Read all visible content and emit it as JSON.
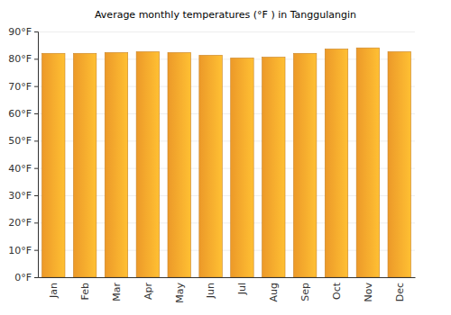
{
  "chart_data": {
    "type": "bar",
    "title": "Average monthly temperatures (°F ) in Tanggulangin",
    "categories": [
      "Jan",
      "Feb",
      "Mar",
      "Apr",
      "May",
      "Jun",
      "Jul",
      "Aug",
      "Sep",
      "Oct",
      "Nov",
      "Dec"
    ],
    "values": [
      82,
      82,
      82.3,
      82.6,
      82.3,
      81.3,
      80.3,
      80.6,
      82,
      83.6,
      84,
      82.6
    ],
    "color": "#f9a12b",
    "ylim": [
      0,
      90
    ],
    "yticks": [
      {
        "value": 0,
        "label": "0°F"
      },
      {
        "value": 10,
        "label": "10°F"
      },
      {
        "value": 20,
        "label": "20°F"
      },
      {
        "value": 30,
        "label": "30°F"
      },
      {
        "value": 40,
        "label": "40°F"
      },
      {
        "value": 50,
        "label": "50°F"
      },
      {
        "value": 60,
        "label": "60°F"
      },
      {
        "value": 70,
        "label": "70°F"
      },
      {
        "value": 80,
        "label": "80°F"
      },
      {
        "value": 90,
        "label": "90°F"
      }
    ],
    "grid": true
  }
}
